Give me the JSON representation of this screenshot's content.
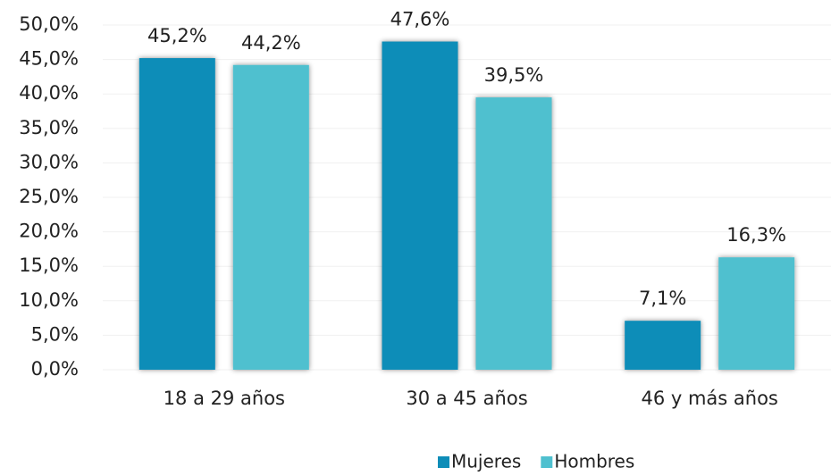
{
  "chart_data": {
    "type": "bar",
    "categories": [
      "18 a 29 años",
      "30 a 45 años",
      "46 y más años"
    ],
    "series": [
      {
        "name": "Mujeres",
        "color": "#0e8db8",
        "values": [
          45.2,
          47.6,
          7.1
        ],
        "value_labels": [
          "45,2%",
          "47,6%",
          "7,1%"
        ]
      },
      {
        "name": "Hombres",
        "color": "#4fc0cf",
        "values": [
          44.2,
          39.5,
          16.3
        ],
        "value_labels": [
          "44,2%",
          "39,5%",
          "16,3%"
        ]
      }
    ],
    "ylim": [
      0,
      50
    ],
    "yticks": [
      {
        "value": 0,
        "label": "0,0%"
      },
      {
        "value": 5,
        "label": "5,0%"
      },
      {
        "value": 10,
        "label": "10,0%"
      },
      {
        "value": 15,
        "label": "15,0%"
      },
      {
        "value": 20,
        "label": "20,0%"
      },
      {
        "value": 25,
        "label": "25,0%"
      },
      {
        "value": 30,
        "label": "30,0%"
      },
      {
        "value": 35,
        "label": "35,0%"
      },
      {
        "value": 40,
        "label": "40,0%"
      },
      {
        "value": 45,
        "label": "45,0%"
      },
      {
        "value": 50,
        "label": "50,0%"
      }
    ],
    "grid": true,
    "legend": "bottom"
  }
}
